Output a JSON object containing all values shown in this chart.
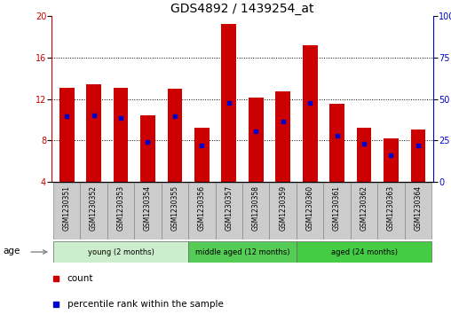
{
  "title": "GDS4892 / 1439254_at",
  "samples": [
    "GSM1230351",
    "GSM1230352",
    "GSM1230353",
    "GSM1230354",
    "GSM1230355",
    "GSM1230356",
    "GSM1230357",
    "GSM1230358",
    "GSM1230359",
    "GSM1230360",
    "GSM1230361",
    "GSM1230362",
    "GSM1230363",
    "GSM1230364"
  ],
  "bar_heights": [
    13.1,
    13.4,
    13.1,
    10.4,
    13.0,
    9.2,
    19.2,
    12.1,
    12.7,
    17.2,
    11.5,
    9.2,
    8.2,
    9.1
  ],
  "bar_base": 4.0,
  "percentile_values": [
    10.3,
    10.4,
    10.2,
    7.85,
    10.3,
    7.55,
    11.65,
    8.9,
    9.8,
    11.65,
    8.5,
    7.65,
    6.6,
    7.5
  ],
  "bar_color": "#cc0000",
  "percentile_color": "#0000cc",
  "ylim_left": [
    4,
    20
  ],
  "ylim_right": [
    0,
    100
  ],
  "yticks_left": [
    4,
    8,
    12,
    16,
    20
  ],
  "yticks_right": [
    0,
    25,
    50,
    75,
    100
  ],
  "groups": [
    {
      "label": "young (2 months)",
      "start": 0,
      "end": 5,
      "color": "#cceecc"
    },
    {
      "label": "middle aged (12 months)",
      "start": 5,
      "end": 9,
      "color": "#55cc55"
    },
    {
      "label": "aged (24 months)",
      "start": 9,
      "end": 14,
      "color": "#44cc44"
    }
  ],
  "age_label": "age",
  "legend_items": [
    {
      "label": "count",
      "color": "#cc0000"
    },
    {
      "label": "percentile rank within the sample",
      "color": "#0000cc"
    }
  ],
  "grid_yticks": [
    8,
    12,
    16
  ],
  "title_fontsize": 10,
  "tick_fontsize": 7,
  "bar_width": 0.55,
  "xlim": [
    -0.55,
    13.55
  ]
}
